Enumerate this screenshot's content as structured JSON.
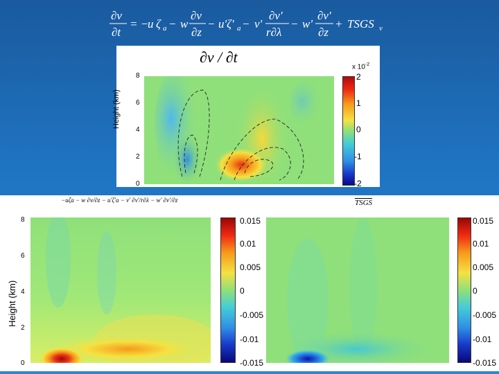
{
  "equation": {
    "lhs_num": "∂v",
    "lhs_den": "∂t",
    "terms": [
      "= −",
      "u",
      "ζ",
      "a",
      " − ",
      "w",
      "∂v",
      "∂z",
      " − ",
      "u'ζ'",
      "a",
      " − ",
      "v'",
      "∂v'",
      "r∂λ",
      " − ",
      "w'",
      "∂v'",
      "∂z",
      " + ",
      "TSGS",
      "v"
    ]
  },
  "top_plot": {
    "title": "∂v / ∂t",
    "ylabel": "Height (km)",
    "colorbar_exponent": "x 10",
    "colorbar_exponent_power": "-2",
    "yticks": [
      "8",
      "6",
      "4",
      "2",
      "0"
    ],
    "cbar_ticks": [
      "2",
      "1",
      "0",
      "-1",
      "-2"
    ]
  },
  "bottom_left": {
    "caption": "−uζa − w ∂v/∂z − u'ζ'a − v' ∂v'/r∂λ − w' ∂v'/∂z",
    "yticks": [
      "8",
      "6",
      "4",
      "2",
      "0"
    ],
    "cbar_ticks": [
      "0.015",
      "0.01",
      "0.005",
      "0",
      "-0.005",
      "-0.01",
      "-0.015"
    ]
  },
  "bottom_right": {
    "caption": "TSGS",
    "cbar_ticks": [
      "0.015",
      "0.01",
      "0.005",
      "0",
      "-0.005",
      "-0.01",
      "-0.015"
    ]
  },
  "shared": {
    "ylabel": "Height (km)"
  },
  "colors": {
    "background_top": "#1a5a9e",
    "background_bottom": "#2a88d8",
    "field_base": "#8fe07a"
  },
  "chart_data": [
    {
      "type": "heatmap",
      "title": "∂v / ∂t",
      "ylabel": "Height (km)",
      "ylim": [
        0,
        8
      ],
      "colorbar": [
        -2,
        2
      ],
      "colorbar_scale": "x 10^-2"
    },
    {
      "type": "heatmap",
      "ylabel": "Height (km)",
      "ylim": [
        0,
        8
      ],
      "colorbar": [
        -0.015,
        0.015
      ]
    },
    {
      "type": "heatmap",
      "ylim": [
        0,
        8
      ],
      "colorbar": [
        -0.015,
        0.015
      ]
    }
  ]
}
